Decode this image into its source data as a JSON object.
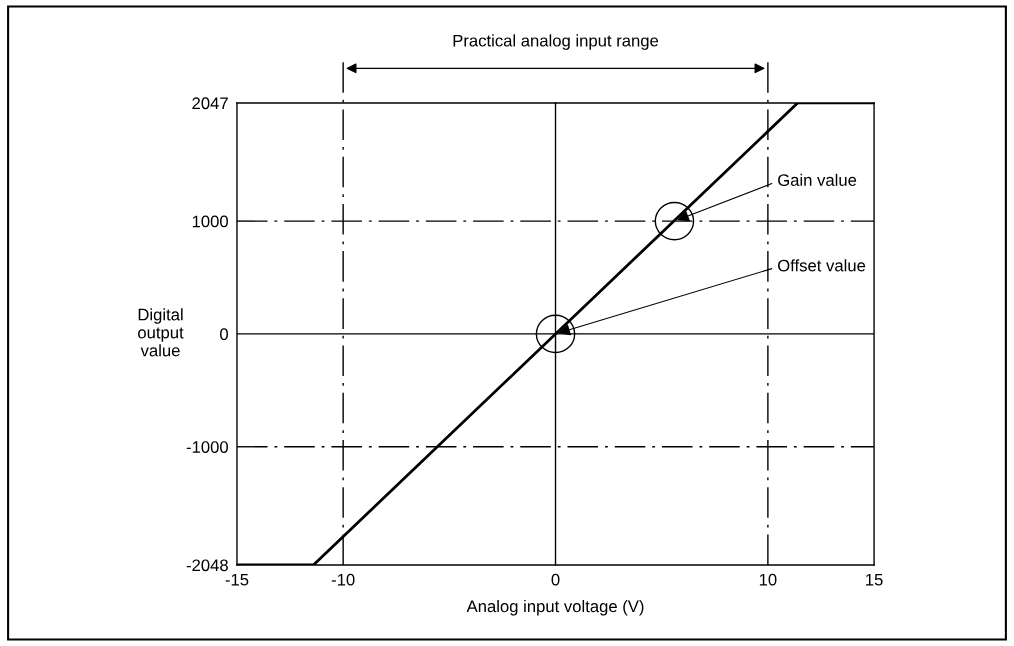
{
  "chart_data": {
    "type": "line",
    "xlabel": "Analog input voltage (V)",
    "ylabel": "Digital\noutput\nvalue",
    "x": [
      -15,
      -11.4,
      11.4,
      15
    ],
    "series": [
      {
        "color": "#000000",
        "values": [
          -2048,
          -2048,
          2047,
          2047
        ]
      }
    ],
    "xlim": [
      -15,
      15
    ],
    "xticks": [
      -15,
      -10,
      0,
      10,
      15
    ],
    "ylim": [
      -2048,
      2047
    ],
    "yticks": [
      -2048,
      -1000,
      0,
      1000,
      2047
    ],
    "grid": false,
    "marker": "none",
    "line_style": "solid",
    "ref_lines": [
      {
        "axis": "x",
        "value": -10,
        "line_style": "dashdot",
        "color": "#000000"
      },
      {
        "axis": "x",
        "value": 0,
        "line_style": "solid",
        "color": "#000000"
      },
      {
        "axis": "x",
        "value": 10,
        "line_style": "dashdot",
        "color": "#000000"
      },
      {
        "axis": "y",
        "value": 1000,
        "line_style": "dashdot",
        "color": "#000000"
      },
      {
        "axis": "y",
        "value": 0,
        "line_style": "solid",
        "color": "#000000"
      },
      {
        "axis": "y",
        "value": -1000,
        "line_style": "dashdot",
        "color": "#000000"
      }
    ],
    "annotations": [
      "Practical analog input range",
      {
        "text": "Gain value",
        "x": 5.6,
        "y": 1000
      },
      {
        "text": "Offset value",
        "x": 0,
        "y": 0
      }
    ]
  }
}
